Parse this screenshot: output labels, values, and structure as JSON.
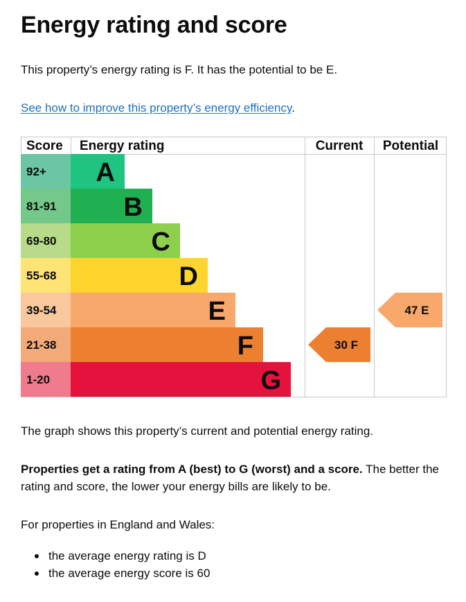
{
  "heading": "Energy rating and score",
  "intro": "This property’s energy rating is F. It has the potential to be E.",
  "link_text": "See how to improve this property’s energy efficiency",
  "link_suffix": ".",
  "chart_data": {
    "type": "bar",
    "title": "Energy rating and score",
    "headers": {
      "score": "Score",
      "rating": "Energy rating",
      "current": "Current",
      "potential": "Potential"
    },
    "bands": [
      {
        "letter": "A",
        "score_range": "92+",
        "score_color": "#6cc6a3",
        "color": "#1ec47f"
      },
      {
        "letter": "B",
        "score_range": "81-91",
        "score_color": "#74c98a",
        "color": "#20b052"
      },
      {
        "letter": "C",
        "score_range": "69-80",
        "score_color": "#b7db88",
        "color": "#8ecf4c"
      },
      {
        "letter": "D",
        "score_range": "55-68",
        "score_color": "#fde475",
        "color": "#fed52d"
      },
      {
        "letter": "E",
        "score_range": "39-54",
        "score_color": "#f9c89c",
        "color": "#f8a86b"
      },
      {
        "letter": "F",
        "score_range": "21-38",
        "score_color": "#f2aa78",
        "color": "#ed7f31"
      },
      {
        "letter": "G",
        "score_range": "1-20",
        "score_color": "#f07b8d",
        "color": "#e6123e"
      }
    ],
    "current": {
      "score": 30,
      "band": "F",
      "label": "30  F",
      "color": "#ed7f31"
    },
    "potential": {
      "score": 47,
      "band": "E",
      "label": "47  E",
      "color": "#f8a86b"
    }
  },
  "graph_caption": "The graph shows this property’s current and potential energy rating.",
  "rating_bold": "Properties get a rating from A (best) to G (worst) and a score.",
  "rating_rest": " The better the rating and score, the lower your energy bills are likely to be.",
  "england_wales": "For properties in England and Wales:",
  "averages": [
    "the average energy rating is D",
    "the average energy score is 60"
  ]
}
